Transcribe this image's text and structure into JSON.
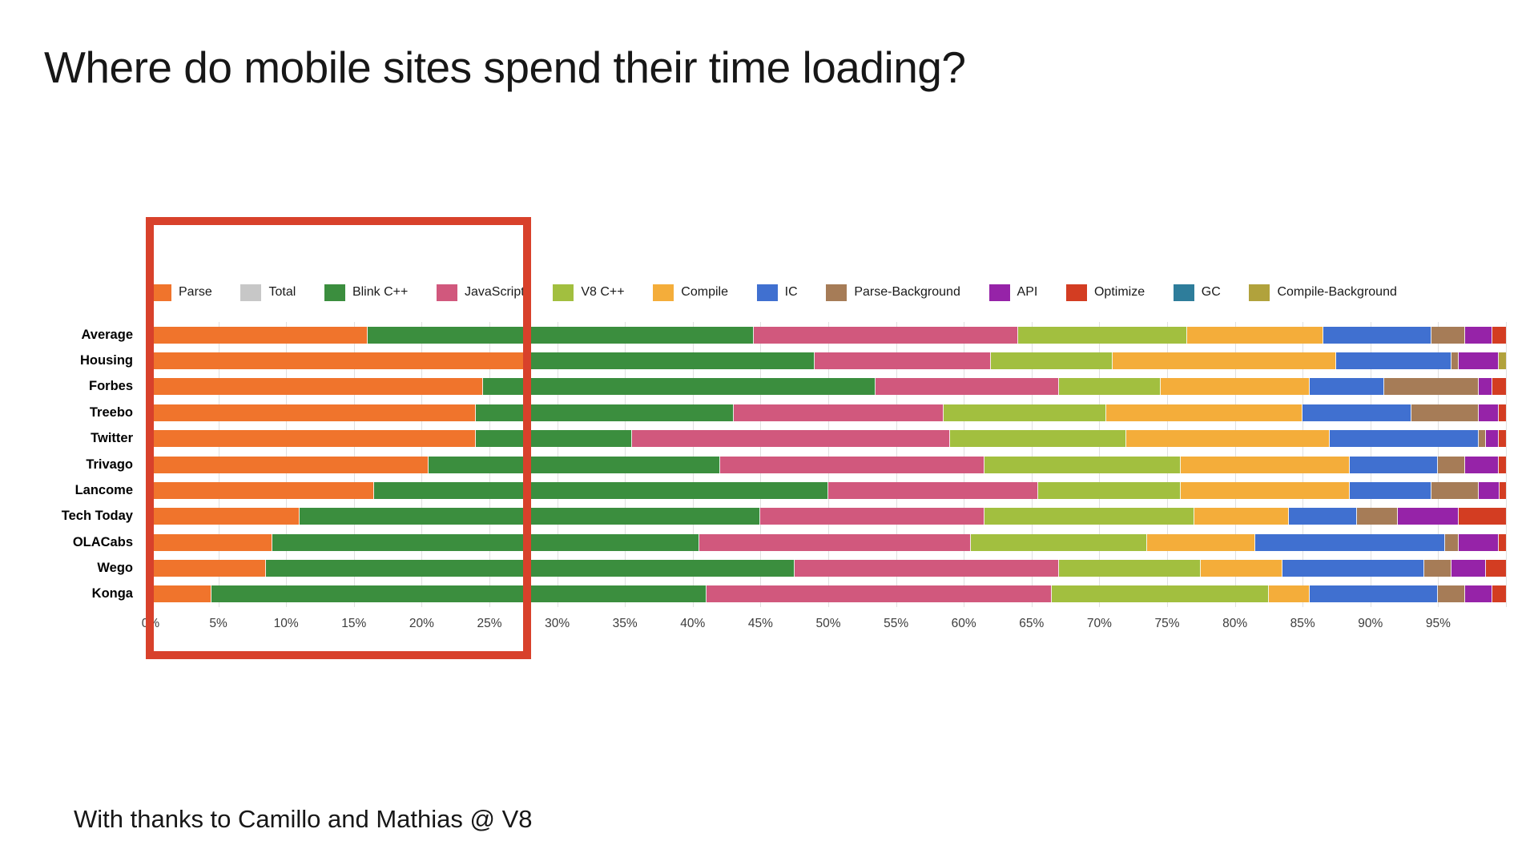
{
  "slide": {
    "title": "Where do mobile sites spend their time loading?",
    "footer": "With thanks to Camillo and Mathias @ V8"
  },
  "chart_data": {
    "type": "bar",
    "orientation": "horizontal",
    "stacked": true,
    "units": "percent of load time",
    "legend_position": "top",
    "grid": true,
    "x_axis": {
      "min": 0,
      "max": 100,
      "tick_step": 5,
      "tick_labels": [
        "0%",
        "5%",
        "10%",
        "15%",
        "20%",
        "25%",
        "30%",
        "35%",
        "40%",
        "45%",
        "50%",
        "55%",
        "60%",
        "65%",
        "70%",
        "75%",
        "80%",
        "85%",
        "90%",
        "95%"
      ]
    },
    "categories": [
      "Average",
      "Housing",
      "Forbes",
      "Treebo",
      "Twitter",
      "Trivago",
      "Lancome",
      "Tech Today",
      "OLACabs",
      "Wego",
      "Konga"
    ],
    "series": [
      {
        "name": "Parse",
        "color": "#f0742c",
        "values": [
          16,
          28,
          24.5,
          24,
          24,
          20.5,
          16.5,
          11,
          9,
          8.5,
          4.5
        ]
      },
      {
        "name": "Total",
        "color": "#c7c7c7",
        "values": [
          0,
          0,
          0,
          0,
          0,
          0,
          0,
          0,
          0,
          0,
          0
        ]
      },
      {
        "name": "Blink C++",
        "color": "#3b8e3e",
        "values": [
          28.5,
          21,
          29,
          19,
          11.5,
          21.5,
          33.5,
          34,
          31.5,
          39,
          36.5
        ]
      },
      {
        "name": "JavaScript",
        "color": "#d1587d",
        "values": [
          19.5,
          13,
          13.5,
          15.5,
          23.5,
          19.5,
          15.5,
          16.5,
          20,
          19.5,
          25.5
        ]
      },
      {
        "name": "V8 C++",
        "color": "#a2bf3f",
        "values": [
          12.5,
          9,
          7.5,
          12,
          13,
          14.5,
          10.5,
          15.5,
          13,
          10.5,
          16
        ]
      },
      {
        "name": "Compile",
        "color": "#f4ad3a",
        "values": [
          10,
          16.5,
          11,
          14.5,
          15,
          12.5,
          12.5,
          7,
          8,
          6,
          3
        ]
      },
      {
        "name": "IC",
        "color": "#4070d0",
        "values": [
          8,
          8.5,
          5.5,
          8,
          11,
          6.5,
          6,
          5,
          14,
          10.5,
          9.5
        ]
      },
      {
        "name": "Parse-Background",
        "color": "#a67c57",
        "values": [
          2.5,
          0.5,
          7,
          5,
          0.5,
          2,
          3.5,
          3,
          1,
          2,
          2
        ]
      },
      {
        "name": "API",
        "color": "#9623a8",
        "values": [
          2,
          3,
          1,
          1.5,
          1,
          2.5,
          1.5,
          4.5,
          3,
          2.5,
          2
        ]
      },
      {
        "name": "Optimize",
        "color": "#d33d22",
        "values": [
          1,
          0,
          1,
          0.5,
          0.5,
          0.5,
          0.5,
          3.5,
          0.5,
          1.5,
          1
        ]
      },
      {
        "name": "GC",
        "color": "#2e7d9b",
        "values": [
          0,
          0,
          0,
          0,
          0,
          0,
          0,
          0,
          0,
          0,
          0
        ]
      },
      {
        "name": "Compile-Background",
        "color": "#b1a23c",
        "values": [
          0,
          0.5,
          0,
          0,
          0,
          0,
          0,
          0,
          0,
          0,
          0
        ]
      }
    ],
    "annotations": {
      "highlight_box": {
        "shape": "rectangle-outline",
        "color": "#d8412b",
        "x_range_percent": [
          0,
          27.5
        ],
        "description": "red outline emphasizing the 0%-27% portion of every bar"
      }
    }
  }
}
